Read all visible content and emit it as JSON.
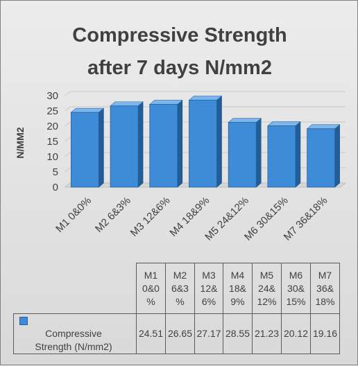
{
  "chart_data": {
    "type": "bar",
    "title_lines": [
      "Compressive Strength",
      "after  7 days N/mm2"
    ],
    "ylabel": "N/MM2",
    "xlabel": "",
    "categories": [
      "M1 0&0%",
      "M2 6&3%",
      "M3 12&6%",
      "M4 18&9%",
      "M5 24&12%",
      "M6 30&15%",
      "M7 36&18%"
    ],
    "table_headers": [
      [
        "M1",
        "0&0",
        "%"
      ],
      [
        "M2",
        "6&3",
        "%"
      ],
      [
        "M3",
        "12&",
        "6%"
      ],
      [
        "M4",
        "18&",
        "9%"
      ],
      [
        "M5",
        "24&",
        "12%"
      ],
      [
        "M6",
        "30&",
        "15%"
      ],
      [
        "M7",
        "36&",
        "18%"
      ]
    ],
    "series": [
      {
        "name": "Compressive Strength  (N/mm2)",
        "name_lines": [
          "Compressive",
          "Strength  (N/mm2)"
        ],
        "values": [
          24.51,
          26.65,
          27.17,
          28.55,
          21.23,
          20.12,
          19.16
        ],
        "value_labels": [
          "24.51",
          "26.65",
          "27.17",
          "28.55",
          "21.23",
          "20.12",
          "19.16"
        ]
      }
    ],
    "ylim": [
      0,
      30
    ],
    "yticks": [
      0,
      5,
      10,
      15,
      20,
      25,
      30
    ],
    "grid": true,
    "legend": "data-table",
    "colors": {
      "bar": "#3e8bd8",
      "bar_side": "#235d97",
      "bar_top": "#7fb6ea"
    }
  }
}
